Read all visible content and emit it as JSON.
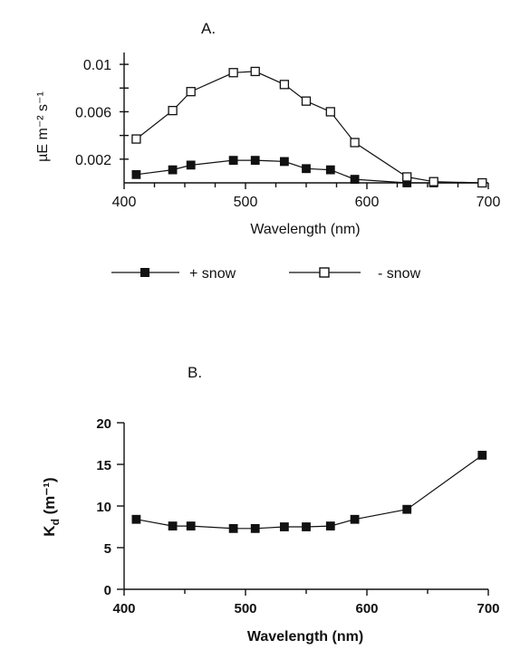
{
  "chart_data": [
    {
      "type": "line",
      "panel_label": "A.",
      "title": "",
      "xlabel": "Wavelength (nm)",
      "ylabel": "µE m⁻² s⁻¹",
      "xlim": [
        400,
        700
      ],
      "ylim": [
        0,
        0.011
      ],
      "xticks": [
        400,
        500,
        600,
        700
      ],
      "xtick_labels": [
        "400",
        "500",
        "600",
        "700"
      ],
      "yticks": [
        0.002,
        0.006,
        0.01
      ],
      "ytick_labels": [
        "0.002",
        "0.006",
        "0.01"
      ],
      "legend_position": "bottom",
      "x": [
        410,
        440,
        455,
        490,
        508,
        532,
        550,
        570,
        590,
        633,
        655,
        695
      ],
      "series": [
        {
          "name": "+ snow",
          "marker": "filled-square",
          "values": [
            0.0007,
            0.0011,
            0.0015,
            0.0019,
            0.0019,
            0.0018,
            0.0012,
            0.0011,
            0.0003,
            0.0,
            0.0,
            0.0
          ]
        },
        {
          "name": "- snow",
          "marker": "open-square",
          "values": [
            0.0037,
            0.0061,
            0.0077,
            0.0093,
            0.0094,
            0.0083,
            0.0069,
            0.006,
            0.0034,
            0.0005,
            0.0001,
            0.0
          ]
        }
      ]
    },
    {
      "type": "line",
      "panel_label": "B.",
      "title": "",
      "xlabel": "Wavelength (nm)",
      "ylabel_main": "K",
      "ylabel_sub": "d",
      "ylabel_units": " (m⁻¹)",
      "xlim": [
        400,
        700
      ],
      "ylim": [
        0,
        20
      ],
      "xticks": [
        400,
        500,
        600,
        700
      ],
      "xtick_labels": [
        "400",
        "500",
        "600",
        "700"
      ],
      "yticks": [
        0,
        5,
        10,
        15,
        20
      ],
      "ytick_labels": [
        "0",
        "5",
        "10",
        "15",
        "20"
      ],
      "x": [
        410,
        440,
        455,
        490,
        508,
        532,
        550,
        570,
        590,
        633,
        695
      ],
      "series": [
        {
          "marker": "filled-square",
          "values": [
            8.4,
            7.6,
            7.6,
            7.3,
            7.3,
            7.5,
            7.5,
            7.6,
            8.4,
            9.6,
            16.1
          ]
        }
      ]
    }
  ]
}
